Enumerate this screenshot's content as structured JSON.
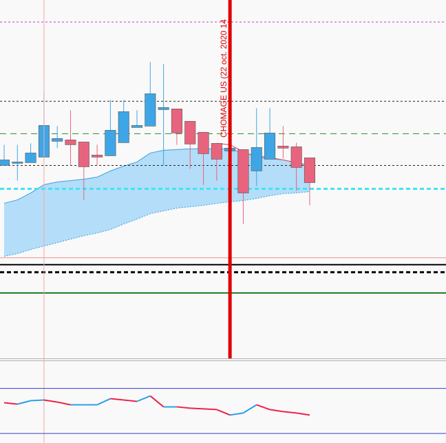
{
  "chart_data": [
    {
      "type": "candlestick",
      "x": [
        0,
        1,
        2,
        3,
        4,
        5,
        6,
        7,
        8,
        9,
        10,
        11,
        12,
        13,
        14,
        15,
        16,
        17,
        18,
        19,
        20,
        21,
        22,
        23
      ],
      "open": [
        280,
        283,
        284,
        292,
        315,
        317,
        314,
        295,
        294,
        313,
        335,
        337,
        361,
        362,
        344,
        328,
        312,
        301,
        303,
        272,
        289,
        308,
        307,
        291
      ],
      "high": [
        310,
        310,
        312,
        388,
        337,
        360,
        314,
        310,
        375,
        375,
        360,
        430,
        427,
        362,
        344,
        328,
        312,
        307,
        303,
        363,
        363,
        337,
        313,
        291
      ],
      "low": [
        280,
        258,
        284,
        292,
        305,
        280,
        230,
        280,
        294,
        313,
        335,
        337,
        280,
        310,
        275,
        252,
        258,
        301,
        195,
        250,
        289,
        290,
        243,
        222
      ],
      "close": [
        288,
        285,
        298,
        338,
        319,
        310,
        278,
        292,
        331,
        358,
        338,
        384,
        364,
        327,
        311,
        297,
        289,
        305,
        240,
        306,
        327,
        305,
        277,
        255
      ],
      "up_color": "#3ea6e6",
      "down_color": "#e8647e",
      "band": {
        "upper": [
          225,
          230,
          240,
          252,
          256,
          258,
          260,
          263,
          272,
          279,
          285,
          298,
          302,
          303,
          304,
          304,
          304,
          304,
          298,
          294,
          292,
          288,
          284,
          280
        ],
        "lower": [
          148,
          152,
          158,
          163,
          168,
          173,
          178,
          182,
          187,
          195,
          202,
          210,
          214,
          218,
          220,
          222,
          225,
          227,
          229,
          232,
          236,
          239,
          240,
          242
        ],
        "fill": "#b3ddf8",
        "color": "#3a9fdf"
      },
      "ma": {
        "values": [
          null,
          null,
          null,
          null,
          null,
          null,
          null,
          null,
          null,
          null,
          null,
          null,
          null,
          null,
          null,
          null,
          312,
          310,
          300,
          292,
          290,
          288,
          284,
          280
        ],
        "color": "#e8506a"
      },
      "levels": [
        {
          "value": 488,
          "color": "#c040c0",
          "style": "dotted"
        },
        {
          "value": 373,
          "color": "#222222",
          "style": "dotted"
        },
        {
          "value": 326,
          "color": "#2a8a2a",
          "style": "dashed"
        },
        {
          "value": 280,
          "color": "#222222",
          "style": "dotted"
        },
        {
          "value": 246,
          "color": "#40e4f4",
          "style": "dashed-bold"
        },
        {
          "value": 146,
          "color": "#f09090",
          "style": "solid"
        },
        {
          "value": 136,
          "color": "#000000",
          "style": "solid-bold"
        },
        {
          "value": 125,
          "color": "#000000",
          "style": "dashed-bold"
        },
        {
          "value": 95,
          "color": "#1a7a1a",
          "style": "solid-bold"
        }
      ],
      "events": [
        {
          "x": 3,
          "color": "#f4a8a8",
          "style": "thin"
        },
        {
          "x": 17,
          "color": "#e00000",
          "style": "bold",
          "label": "CHOMAGE US (22 oct. 2020 14"
        }
      ],
      "xlim": [
        -0.31,
        33.26
      ],
      "ylim": [
        0,
        520
      ]
    },
    {
      "type": "line",
      "x": [
        0,
        1,
        2,
        3,
        4,
        5,
        6,
        7,
        8,
        9,
        10,
        11,
        12,
        13,
        14,
        15,
        16,
        17,
        18,
        19,
        20,
        21,
        22,
        23
      ],
      "values": [
        59,
        57,
        62,
        63,
        60,
        56,
        56,
        56,
        65,
        63,
        61,
        69,
        53,
        53,
        51,
        50,
        49,
        41,
        44,
        56,
        49,
        46,
        44,
        41
      ],
      "up_color": "#2a9fe8",
      "down_color": "#f0204a",
      "levels": [
        {
          "value": 80,
          "color": "#3a3ad0",
          "style": "solid"
        },
        {
          "value": 14,
          "color": "#3a3ad0",
          "style": "solid"
        }
      ],
      "xlim": [
        -0.31,
        33.26
      ],
      "ylim": [
        0,
        121
      ]
    }
  ]
}
